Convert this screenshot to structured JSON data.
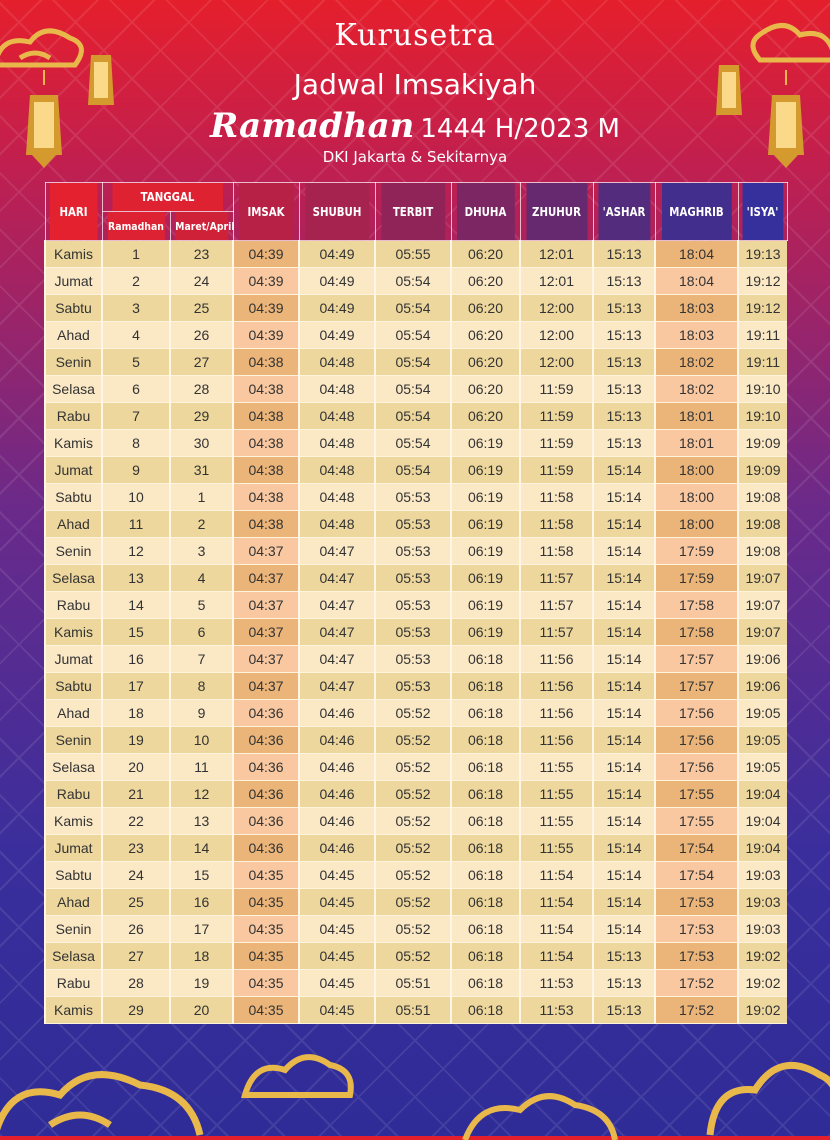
{
  "header": {
    "logo_text": "Kurusetra",
    "title": "Jadwal Imsakiyah",
    "title_script": "Ramadhan",
    "title_year": "1444 H/2023 M",
    "subtitle": "DKI Jakarta & Sekitarnya"
  },
  "colors": {
    "header_start": "#e8222e",
    "header_end": "#35309c",
    "row_odd": "#edd79c",
    "row_even": "#fbe8c5",
    "highlight_odd": "#ebb57a",
    "highlight_even": "#f9c8a0",
    "gold": "#e8b84a"
  },
  "table": {
    "headers": {
      "hari": "HARI",
      "tanggal": "TANGGAL",
      "ramadhan": "Ramadhan",
      "masehi": "Maret/April",
      "imsak": "IMSAK",
      "shubuh": "SHUBUH",
      "terbit": "TERBIT",
      "dhuha": "DHUHA",
      "zhuhur": "ZHUHUR",
      "ashar": "'ASHAR",
      "maghrib": "MAGHRIB",
      "isya": "'ISYA'"
    },
    "rows": [
      [
        "Kamis",
        "1",
        "23",
        "04:39",
        "04:49",
        "05:55",
        "06:20",
        "12:01",
        "15:13",
        "18:04",
        "19:13"
      ],
      [
        "Jumat",
        "2",
        "24",
        "04:39",
        "04:49",
        "05:54",
        "06:20",
        "12:01",
        "15:13",
        "18:04",
        "19:12"
      ],
      [
        "Sabtu",
        "3",
        "25",
        "04:39",
        "04:49",
        "05:54",
        "06:20",
        "12:00",
        "15:13",
        "18:03",
        "19:12"
      ],
      [
        "Ahad",
        "4",
        "26",
        "04:39",
        "04:49",
        "05:54",
        "06:20",
        "12:00",
        "15:13",
        "18:03",
        "19:11"
      ],
      [
        "Senin",
        "5",
        "27",
        "04:38",
        "04:48",
        "05:54",
        "06:20",
        "12:00",
        "15:13",
        "18:02",
        "19:11"
      ],
      [
        "Selasa",
        "6",
        "28",
        "04:38",
        "04:48",
        "05:54",
        "06:20",
        "11:59",
        "15:13",
        "18:02",
        "19:10"
      ],
      [
        "Rabu",
        "7",
        "29",
        "04:38",
        "04:48",
        "05:54",
        "06:20",
        "11:59",
        "15:13",
        "18:01",
        "19:10"
      ],
      [
        "Kamis",
        "8",
        "30",
        "04:38",
        "04:48",
        "05:54",
        "06:19",
        "11:59",
        "15:13",
        "18:01",
        "19:09"
      ],
      [
        "Jumat",
        "9",
        "31",
        "04:38",
        "04:48",
        "05:54",
        "06:19",
        "11:59",
        "15:14",
        "18:00",
        "19:09"
      ],
      [
        "Sabtu",
        "10",
        "1",
        "04:38",
        "04:48",
        "05:53",
        "06:19",
        "11:58",
        "15:14",
        "18:00",
        "19:08"
      ],
      [
        "Ahad",
        "11",
        "2",
        "04:38",
        "04:48",
        "05:53",
        "06:19",
        "11:58",
        "15:14",
        "18:00",
        "19:08"
      ],
      [
        "Senin",
        "12",
        "3",
        "04:37",
        "04:47",
        "05:53",
        "06:19",
        "11:58",
        "15:14",
        "17:59",
        "19:08"
      ],
      [
        "Selasa",
        "13",
        "4",
        "04:37",
        "04:47",
        "05:53",
        "06:19",
        "11:57",
        "15:14",
        "17:59",
        "19:07"
      ],
      [
        "Rabu",
        "14",
        "5",
        "04:37",
        "04:47",
        "05:53",
        "06:19",
        "11:57",
        "15:14",
        "17:58",
        "19:07"
      ],
      [
        "Kamis",
        "15",
        "6",
        "04:37",
        "04:47",
        "05:53",
        "06:19",
        "11:57",
        "15:14",
        "17:58",
        "19:07"
      ],
      [
        "Jumat",
        "16",
        "7",
        "04:37",
        "04:47",
        "05:53",
        "06:18",
        "11:56",
        "15:14",
        "17:57",
        "19:06"
      ],
      [
        "Sabtu",
        "17",
        "8",
        "04:37",
        "04:47",
        "05:53",
        "06:18",
        "11:56",
        "15:14",
        "17:57",
        "19:06"
      ],
      [
        "Ahad",
        "18",
        "9",
        "04:36",
        "04:46",
        "05:52",
        "06:18",
        "11:56",
        "15:14",
        "17:56",
        "19:05"
      ],
      [
        "Senin",
        "19",
        "10",
        "04:36",
        "04:46",
        "05:52",
        "06:18",
        "11:56",
        "15:14",
        "17:56",
        "19:05"
      ],
      [
        "Selasa",
        "20",
        "11",
        "04:36",
        "04:46",
        "05:52",
        "06:18",
        "11:55",
        "15:14",
        "17:56",
        "19:05"
      ],
      [
        "Rabu",
        "21",
        "12",
        "04:36",
        "04:46",
        "05:52",
        "06:18",
        "11:55",
        "15:14",
        "17:55",
        "19:04"
      ],
      [
        "Kamis",
        "22",
        "13",
        "04:36",
        "04:46",
        "05:52",
        "06:18",
        "11:55",
        "15:14",
        "17:55",
        "19:04"
      ],
      [
        "Jumat",
        "23",
        "14",
        "04:36",
        "04:46",
        "05:52",
        "06:18",
        "11:55",
        "15:14",
        "17:54",
        "19:04"
      ],
      [
        "Sabtu",
        "24",
        "15",
        "04:35",
        "04:45",
        "05:52",
        "06:18",
        "11:54",
        "15:14",
        "17:54",
        "19:03"
      ],
      [
        "Ahad",
        "25",
        "16",
        "04:35",
        "04:45",
        "05:52",
        "06:18",
        "11:54",
        "15:14",
        "17:53",
        "19:03"
      ],
      [
        "Senin",
        "26",
        "17",
        "04:35",
        "04:45",
        "05:52",
        "06:18",
        "11:54",
        "15:14",
        "17:53",
        "19:03"
      ],
      [
        "Selasa",
        "27",
        "18",
        "04:35",
        "04:45",
        "05:52",
        "06:18",
        "11:54",
        "15:13",
        "17:53",
        "19:02"
      ],
      [
        "Rabu",
        "28",
        "19",
        "04:35",
        "04:45",
        "05:51",
        "06:18",
        "11:53",
        "15:13",
        "17:52",
        "19:02"
      ],
      [
        "Kamis",
        "29",
        "20",
        "04:35",
        "04:45",
        "05:51",
        "06:18",
        "11:53",
        "15:13",
        "17:52",
        "19:02"
      ]
    ]
  }
}
